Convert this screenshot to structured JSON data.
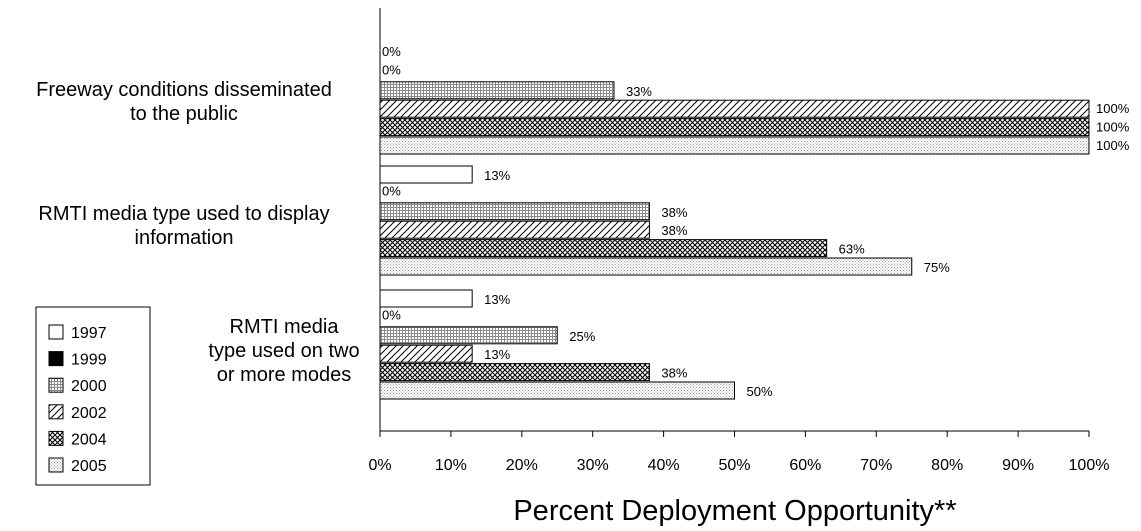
{
  "chart_data": {
    "type": "bar",
    "orientation": "horizontal",
    "categories": [
      [
        "Freeway conditions disseminated",
        "to the public"
      ],
      [
        "RMTI media type used to display",
        "information"
      ],
      [
        "RMTI media",
        "type used on two",
        "or more modes"
      ]
    ],
    "series": [
      {
        "name": "1997",
        "values": [
          0,
          13,
          13
        ],
        "pattern": "white"
      },
      {
        "name": "1999",
        "values": [
          0,
          0,
          0
        ],
        "pattern": "black"
      },
      {
        "name": "2000",
        "values": [
          33,
          38,
          25
        ],
        "pattern": "fine-grid"
      },
      {
        "name": "2002",
        "values": [
          100,
          38,
          13
        ],
        "pattern": "diagonal"
      },
      {
        "name": "2004",
        "values": [
          100,
          63,
          38
        ],
        "pattern": "crosshatch"
      },
      {
        "name": "2005",
        "values": [
          100,
          75,
          50
        ],
        "pattern": "dots"
      }
    ],
    "xlabel": "Percent Deployment Opportunity**",
    "xlim": [
      0,
      100
    ],
    "xticks": [
      "0%",
      "10%",
      "20%",
      "30%",
      "40%",
      "50%",
      "60%",
      "70%",
      "80%",
      "90%",
      "100%"
    ],
    "value_suffix": "%",
    "grid": false,
    "legend_position": "bottom-left"
  }
}
